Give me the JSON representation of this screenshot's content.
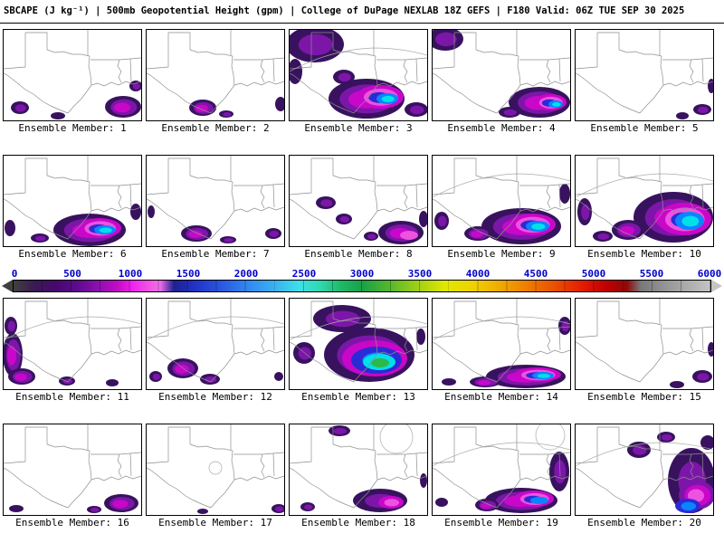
{
  "title": "SBCAPE (J kg⁻¹) | 500mb Geopotential Height (gpm) | College of DuPage NEXLAB 18Z GEFS | F180 Valid: 06Z TUE SEP 30 2025",
  "colorbar": {
    "ticks": [
      "0",
      "500",
      "1000",
      "1500",
      "2000",
      "2500",
      "3000",
      "3500",
      "4000",
      "4500",
      "5000",
      "5500",
      "6000"
    ],
    "tick_color": "#0000cc",
    "gradient": [
      [
        0,
        "#404040"
      ],
      [
        3,
        "#3a1a52"
      ],
      [
        6,
        "#47086e"
      ],
      [
        9,
        "#5c0a8c"
      ],
      [
        12,
        "#8a10ae"
      ],
      [
        15,
        "#c40cc4"
      ],
      [
        17,
        "#ee22ee"
      ],
      [
        20,
        "#f25fe2"
      ],
      [
        21,
        "#ef6fe8"
      ],
      [
        23,
        "#202090"
      ],
      [
        26,
        "#2033c8"
      ],
      [
        30,
        "#2a5ae0"
      ],
      [
        34,
        "#338cf0"
      ],
      [
        38,
        "#3ab8f0"
      ],
      [
        41,
        "#3fe0e8"
      ],
      [
        44,
        "#30d8b0"
      ],
      [
        47,
        "#20b868"
      ],
      [
        50,
        "#18a048"
      ],
      [
        54,
        "#55b82c"
      ],
      [
        58,
        "#a0d018"
      ],
      [
        62,
        "#e0e800"
      ],
      [
        66,
        "#f0d000"
      ],
      [
        70,
        "#f0a800"
      ],
      [
        74,
        "#ee7a00"
      ],
      [
        78,
        "#e84c00"
      ],
      [
        82,
        "#e01800"
      ],
      [
        85,
        "#c00000"
      ],
      [
        88,
        "#900808"
      ],
      [
        90,
        "#787878"
      ],
      [
        94,
        "#989898"
      ],
      [
        100,
        "#c4c4c4"
      ]
    ]
  },
  "cape_colors": [
    "#38125f",
    "#7c16a8",
    "#c907c9",
    "#ee52e0",
    "#2b2bd6",
    "#0a84ff",
    "#00e0e8",
    "#2db84b"
  ],
  "panels": [
    {
      "label": "Ensemble Member: 1",
      "blobs": [
        [
          18,
          86,
          10,
          7,
          2,
          0
        ],
        [
          132,
          85,
          20,
          12,
          3,
          0
        ],
        [
          146,
          62,
          7,
          6,
          2,
          0
        ],
        [
          60,
          95,
          8,
          4,
          1,
          0
        ]
      ]
    },
    {
      "label": "Ensemble Member: 2",
      "blobs": [
        [
          62,
          86,
          15,
          9,
          3,
          0
        ],
        [
          88,
          93,
          8,
          4,
          2,
          0
        ],
        [
          148,
          82,
          6,
          8,
          1,
          0
        ]
      ]
    },
    {
      "label": "Ensemble Member: 3",
      "contour": true,
      "blobs": [
        [
          28,
          16,
          32,
          20,
          2,
          0
        ],
        [
          6,
          46,
          8,
          14,
          1,
          0
        ],
        [
          60,
          52,
          12,
          8,
          2,
          0
        ],
        [
          85,
          76,
          42,
          22,
          3,
          0
        ],
        [
          100,
          74,
          26,
          13,
          3,
          2
        ],
        [
          108,
          76,
          12,
          6,
          2,
          5
        ],
        [
          140,
          88,
          13,
          8,
          2,
          0
        ]
      ]
    },
    {
      "label": "Ensemble Member: 4",
      "blobs": [
        [
          14,
          10,
          20,
          13,
          2,
          0
        ],
        [
          118,
          80,
          34,
          17,
          3,
          0
        ],
        [
          130,
          80,
          18,
          9,
          3,
          2
        ],
        [
          136,
          82,
          8,
          4,
          2,
          5
        ],
        [
          85,
          91,
          12,
          6,
          2,
          0
        ]
      ]
    },
    {
      "label": "Ensemble Member: 5",
      "blobs": [
        [
          140,
          88,
          10,
          6,
          2,
          0
        ],
        [
          150,
          62,
          4,
          8,
          1,
          0
        ],
        [
          118,
          95,
          7,
          4,
          1,
          0
        ]
      ]
    },
    {
      "label": "Ensemble Member: 6",
      "blobs": [
        [
          95,
          82,
          40,
          18,
          3,
          0
        ],
        [
          106,
          80,
          24,
          11,
          3,
          2
        ],
        [
          112,
          82,
          12,
          5,
          2,
          5
        ],
        [
          40,
          91,
          10,
          5,
          2,
          0
        ],
        [
          7,
          80,
          6,
          9,
          1,
          0
        ],
        [
          146,
          62,
          6,
          9,
          1,
          0
        ]
      ]
    },
    {
      "label": "Ensemble Member: 7",
      "blobs": [
        [
          55,
          86,
          17,
          9,
          3,
          0
        ],
        [
          90,
          93,
          9,
          4,
          2,
          0
        ],
        [
          140,
          86,
          9,
          6,
          2,
          0
        ],
        [
          5,
          62,
          4,
          7,
          1,
          0
        ]
      ]
    },
    {
      "label": "Ensemble Member: 8",
      "blobs": [
        [
          40,
          52,
          11,
          7,
          2,
          0
        ],
        [
          60,
          70,
          9,
          6,
          2,
          0
        ],
        [
          123,
          85,
          25,
          13,
          3,
          0
        ],
        [
          132,
          88,
          10,
          5,
          1,
          3
        ],
        [
          148,
          70,
          5,
          9,
          1,
          0
        ],
        [
          90,
          89,
          8,
          5,
          2,
          0
        ]
      ]
    },
    {
      "label": "Ensemble Member: 9",
      "contour": true,
      "blobs": [
        [
          98,
          78,
          44,
          20,
          3,
          0
        ],
        [
          110,
          76,
          26,
          12,
          3,
          2
        ],
        [
          116,
          78,
          13,
          6,
          2,
          5
        ],
        [
          50,
          86,
          15,
          8,
          3,
          0
        ],
        [
          10,
          72,
          8,
          10,
          2,
          0
        ],
        [
          146,
          42,
          6,
          11,
          1,
          0
        ]
      ]
    },
    {
      "label": "Ensemble Member: 10",
      "contour": true,
      "blobs": [
        [
          108,
          68,
          44,
          28,
          3,
          0
        ],
        [
          120,
          70,
          30,
          18,
          3,
          2
        ],
        [
          126,
          72,
          16,
          10,
          2,
          5
        ],
        [
          58,
          82,
          18,
          11,
          3,
          0
        ],
        [
          10,
          62,
          8,
          15,
          2,
          0
        ],
        [
          30,
          89,
          11,
          6,
          2,
          0
        ]
      ]
    },
    {
      "label": "Ensemble Member: 11",
      "contour": true,
      "blobs": [
        [
          10,
          62,
          11,
          24,
          3,
          0
        ],
        [
          20,
          86,
          15,
          9,
          3,
          0
        ],
        [
          8,
          30,
          7,
          10,
          2,
          0
        ],
        [
          70,
          91,
          9,
          5,
          2,
          0
        ],
        [
          120,
          93,
          7,
          4,
          1,
          0
        ]
      ]
    },
    {
      "label": "Ensemble Member: 12",
      "contour": true,
      "blobs": [
        [
          40,
          77,
          17,
          11,
          3,
          0
        ],
        [
          70,
          89,
          11,
          6,
          2,
          0
        ],
        [
          10,
          86,
          7,
          6,
          2,
          0
        ],
        [
          146,
          86,
          5,
          5,
          1,
          0
        ]
      ]
    },
    {
      "label": "Ensemble Member: 13",
      "contour": true,
      "blobs": [
        [
          58,
          22,
          32,
          15,
          2,
          0
        ],
        [
          16,
          60,
          12,
          12,
          2,
          0
        ],
        [
          88,
          62,
          50,
          30,
          3,
          0
        ],
        [
          94,
          66,
          36,
          20,
          2,
          2
        ],
        [
          96,
          68,
          28,
          15,
          2,
          4
        ],
        [
          99,
          70,
          18,
          9,
          1,
          6
        ],
        [
          100,
          71,
          10,
          5,
          1,
          7
        ],
        [
          145,
          42,
          5,
          9,
          1,
          0
        ]
      ]
    },
    {
      "label": "Ensemble Member: 14",
      "contour": true,
      "blobs": [
        [
          103,
          86,
          44,
          13,
          3,
          0
        ],
        [
          116,
          84,
          26,
          8,
          3,
          2
        ],
        [
          122,
          85,
          12,
          4,
          2,
          5
        ],
        [
          58,
          92,
          17,
          6,
          3,
          0
        ],
        [
          146,
          30,
          7,
          10,
          2,
          0
        ],
        [
          18,
          92,
          8,
          4,
          1,
          0
        ]
      ]
    },
    {
      "label": "Ensemble Member: 15",
      "blobs": [
        [
          140,
          86,
          11,
          7,
          2,
          0
        ],
        [
          150,
          56,
          4,
          8,
          1,
          0
        ],
        [
          112,
          95,
          8,
          4,
          1,
          0
        ]
      ]
    },
    {
      "label": "Ensemble Member: 16",
      "blobs": [
        [
          130,
          87,
          19,
          10,
          3,
          0
        ],
        [
          100,
          94,
          8,
          4,
          2,
          0
        ],
        [
          14,
          93,
          8,
          4,
          1,
          0
        ]
      ]
    },
    {
      "label": "Ensemble Member: 17",
      "ring": [
        76,
        48,
        7
      ],
      "blobs": [
        [
          146,
          93,
          8,
          5,
          2,
          0
        ],
        [
          62,
          96,
          6,
          3,
          1,
          0
        ]
      ]
    },
    {
      "label": "Ensemble Member: 18",
      "ring": [
        118,
        14,
        18
      ],
      "blobs": [
        [
          100,
          84,
          30,
          13,
          2,
          0
        ],
        [
          112,
          86,
          14,
          7,
          2,
          2
        ],
        [
          55,
          7,
          12,
          6,
          2,
          0
        ],
        [
          20,
          91,
          8,
          5,
          2,
          0
        ],
        [
          148,
          62,
          4,
          8,
          1,
          0
        ]
      ]
    },
    {
      "label": "Ensemble Member: 19",
      "contour": true,
      "ring": [
        130,
        12,
        16
      ],
      "blobs": [
        [
          98,
          84,
          40,
          14,
          3,
          0
        ],
        [
          112,
          82,
          22,
          9,
          3,
          2
        ],
        [
          118,
          84,
          10,
          4,
          1,
          5
        ],
        [
          140,
          52,
          11,
          22,
          2,
          0
        ],
        [
          60,
          89,
          13,
          7,
          3,
          0
        ],
        [
          10,
          86,
          7,
          5,
          1,
          0
        ]
      ]
    },
    {
      "label": "Ensemble Member: 20",
      "contour": true,
      "blobs": [
        [
          128,
          62,
          26,
          36,
          2,
          0
        ],
        [
          134,
          78,
          20,
          16,
          3,
          1
        ],
        [
          124,
          90,
          14,
          8,
          2,
          4
        ],
        [
          70,
          28,
          13,
          9,
          2,
          0
        ],
        [
          100,
          14,
          10,
          6,
          2,
          0
        ],
        [
          146,
          20,
          8,
          8,
          1,
          0
        ]
      ]
    }
  ],
  "chart_data": {
    "type": "heatmap",
    "title": "SBCAPE (J kg⁻¹) | 500mb Geopotential Height (gpm)",
    "source": "College of DuPage NEXLAB",
    "model": "18Z GEFS",
    "forecast_hour": "F180",
    "valid": "06Z TUE SEP 30 2025",
    "units": "J kg⁻¹",
    "layout": "4 rows x 5 columns of ensemble member maps over Texas / Gulf Coast region",
    "colorbar_range": [
      0,
      6000
    ],
    "colorbar_ticks": [
      0,
      500,
      1000,
      1500,
      2000,
      2500,
      3000,
      3500,
      4000,
      4500,
      5000,
      5500,
      6000
    ],
    "legend_position": "horizontal bar between rows 2 and 3",
    "panels": [
      {
        "member": 1,
        "approx_max_sbcape": 1000
      },
      {
        "member": 2,
        "approx_max_sbcape": 1000
      },
      {
        "member": 3,
        "approx_max_sbcape": 2500
      },
      {
        "member": 4,
        "approx_max_sbcape": 2500
      },
      {
        "member": 5,
        "approx_max_sbcape": 500
      },
      {
        "member": 6,
        "approx_max_sbcape": 2500
      },
      {
        "member": 7,
        "approx_max_sbcape": 1000
      },
      {
        "member": 8,
        "approx_max_sbcape": 1000
      },
      {
        "member": 9,
        "approx_max_sbcape": 2500
      },
      {
        "member": 10,
        "approx_max_sbcape": 2500
      },
      {
        "member": 11,
        "approx_max_sbcape": 1000
      },
      {
        "member": 12,
        "approx_max_sbcape": 1000
      },
      {
        "member": 13,
        "approx_max_sbcape": 3000
      },
      {
        "member": 14,
        "approx_max_sbcape": 2500
      },
      {
        "member": 15,
        "approx_max_sbcape": 500
      },
      {
        "member": 16,
        "approx_max_sbcape": 1000
      },
      {
        "member": 17,
        "approx_max_sbcape": 500
      },
      {
        "member": 18,
        "approx_max_sbcape": 1250
      },
      {
        "member": 19,
        "approx_max_sbcape": 2000
      },
      {
        "member": 20,
        "approx_max_sbcape": 2000
      }
    ]
  }
}
